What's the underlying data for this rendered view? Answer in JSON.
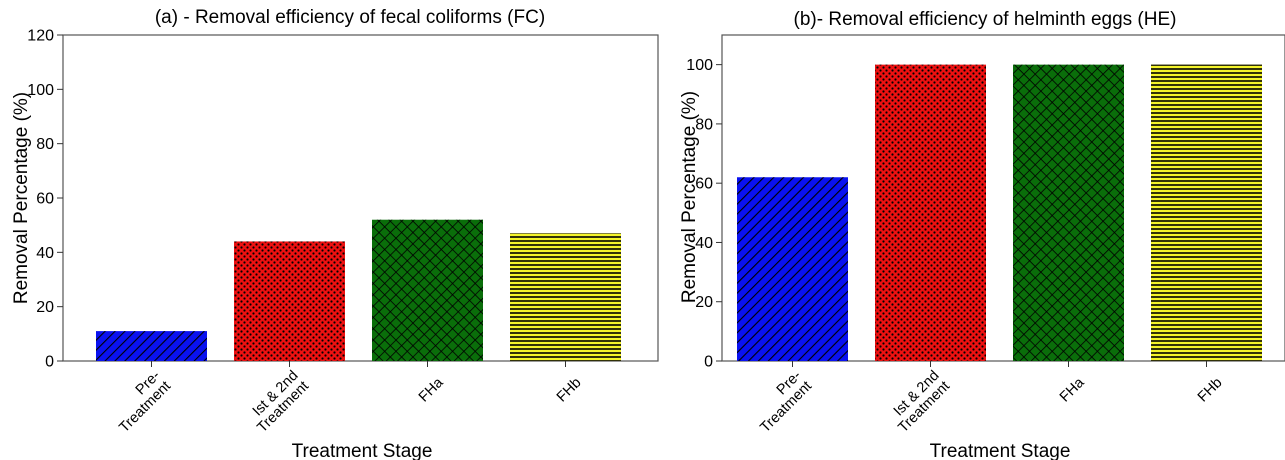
{
  "chart_data": [
    {
      "type": "bar",
      "title": "(a) - Removal efficiency of fecal coliforms (FC)",
      "xlabel": "Treatment Stage",
      "ylabel": "Removal Percentage (%)",
      "ylim": [
        0,
        120
      ],
      "yticks": [
        0,
        20,
        40,
        60,
        80,
        100,
        120
      ],
      "categories": [
        [
          "Pre-",
          "Treatment"
        ],
        [
          "Ist & 2nd",
          "Treatment"
        ],
        [
          "FHa"
        ],
        [
          "FHb"
        ]
      ],
      "values": [
        11,
        44,
        52,
        47
      ],
      "colors": [
        "#0a12f0",
        "#ee1111",
        "#0a6e0a",
        "#f4f42a"
      ],
      "patterns": [
        "diagonal",
        "dots",
        "crosshatch",
        "horizontal"
      ],
      "grid": false
    },
    {
      "type": "bar",
      "title": "(b)- Removal efficiency of helminth eggs (HE)",
      "xlabel": "Treatment Stage",
      "ylabel": "Removal Percentage (%)",
      "ylim": [
        0,
        110
      ],
      "yticks": [
        0,
        20,
        40,
        60,
        80,
        100
      ],
      "categories": [
        [
          "Pre-",
          "Treatment"
        ],
        [
          "Ist & 2nd",
          "Treatment"
        ],
        [
          "FHa"
        ],
        [
          "FHb"
        ]
      ],
      "values": [
        62,
        100,
        100,
        100
      ],
      "colors": [
        "#0a12f0",
        "#ee1111",
        "#0a6e0a",
        "#f4f42a"
      ],
      "patterns": [
        "diagonal",
        "dots",
        "crosshatch",
        "horizontal"
      ],
      "grid": false
    }
  ]
}
